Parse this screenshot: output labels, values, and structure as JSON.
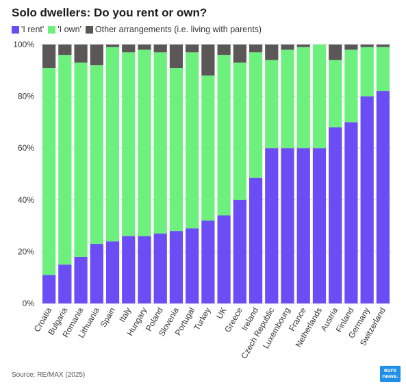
{
  "title": "Solo dwellers: Do you rent or own?",
  "legend": [
    {
      "label": "'I rent'",
      "color": "#6a4df4"
    },
    {
      "label": "'I own'",
      "color": "#6ef07f"
    },
    {
      "label": "Other arrangements (i.e. living with parents)",
      "color": "#5b5757"
    }
  ],
  "source": "Source: RE/MAX (2025)",
  "logo": {
    "line1": "euro",
    "line2": "news."
  },
  "chart_data": {
    "type": "bar",
    "stacked": true,
    "categories": [
      "Croatia",
      "Bulgaria",
      "Romania",
      "Lithuania",
      "Spain",
      "Italy",
      "Hungary",
      "Poland",
      "Slovenia",
      "Portugal",
      "Turkey",
      "UK",
      "Greece",
      "Ireland",
      "Czech Republic",
      "Luxembourg",
      "France",
      "Netherlands",
      "Austria",
      "Finland",
      "Germany",
      "Switzerland"
    ],
    "series": [
      {
        "name": "'I rent'",
        "color": "#6a4df4",
        "values": [
          11,
          15,
          18,
          23,
          24,
          26,
          26,
          27,
          28,
          29,
          32,
          34,
          40,
          48.5,
          60,
          60,
          60,
          60,
          68,
          70,
          80,
          82
        ]
      },
      {
        "name": "'I own'",
        "color": "#6ef07f",
        "values": [
          80,
          81,
          75,
          69,
          75,
          71,
          72,
          70,
          63,
          68,
          56,
          62,
          53,
          48.5,
          34,
          38,
          39,
          40,
          26,
          28,
          19,
          17
        ]
      },
      {
        "name": "Other arrangements (i.e. living with parents)",
        "color": "#5b5757",
        "values": [
          9,
          4,
          7,
          8,
          1,
          3,
          2,
          3,
          9,
          3,
          12,
          4,
          7,
          3,
          6,
          2,
          1,
          0,
          6,
          2,
          1,
          1
        ]
      }
    ],
    "ylim": [
      0,
      100
    ],
    "yticks": [
      "0%",
      "20%",
      "40%",
      "60%",
      "80%",
      "100%"
    ],
    "grid": true
  }
}
